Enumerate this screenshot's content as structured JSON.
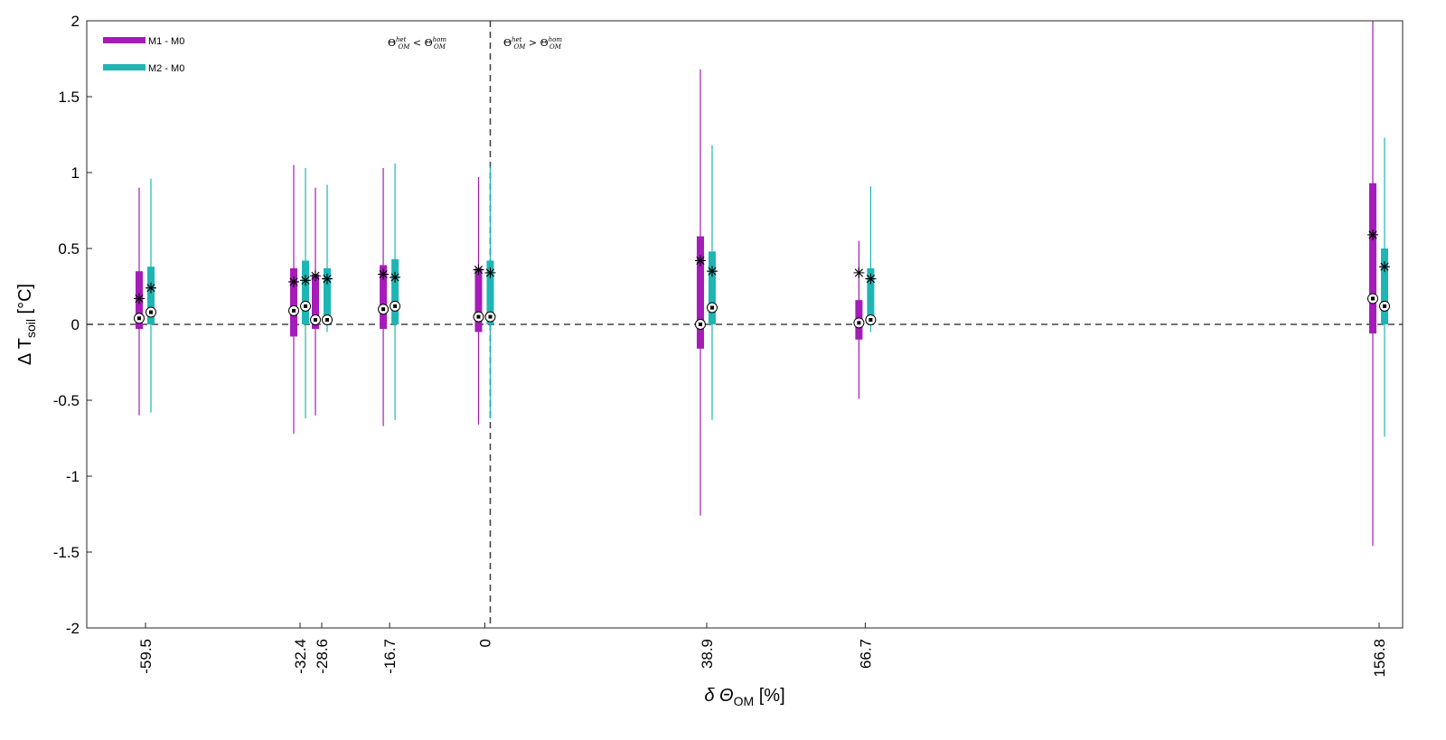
{
  "chart_data": {
    "type": "box",
    "xlabel": {
      "prefix": "δ Θ",
      "sub": "OM",
      "suffix": " [%]"
    },
    "ylabel": {
      "prefix": "Δ T",
      "sub": "soil",
      "suffix": " [°C]"
    },
    "ylim": [
      -2,
      2
    ],
    "yticks": [
      -2,
      -1.5,
      -1,
      -0.5,
      0,
      0.5,
      1,
      1.5,
      2
    ],
    "ytick_labels": [
      "-2",
      "-1.5",
      "-1",
      "-0.5",
      "0",
      "0.5",
      "1",
      "1.5",
      "2"
    ],
    "categories": [
      "-59.5",
      "-32.4",
      "-28.6",
      "-16.7",
      "0",
      "38.9",
      "66.7",
      "156.8"
    ],
    "zero_line": "dashed",
    "divider_at_category": "0",
    "annotations": [
      {
        "text": "Θ",
        "sub": "OM",
        "sup": "het",
        "op": " < ",
        "text2": "Θ",
        "sub2": "OM",
        "sup2": "hom",
        "side": "left"
      },
      {
        "text": "Θ",
        "sub": "OM",
        "sup": "het",
        "op": " > ",
        "text2": "Θ",
        "sub2": "OM",
        "sup2": "hom",
        "side": "right"
      }
    ],
    "legend_position": "top-left",
    "series": [
      {
        "name": "M1 - M0",
        "color": "#A51CB9",
        "boxes": [
          {
            "whisker_low": -0.6,
            "q1": -0.03,
            "median": 0.04,
            "q3": 0.35,
            "whisker_high": 0.9,
            "mean": 0.17
          },
          {
            "whisker_low": -0.72,
            "q1": -0.08,
            "median": 0.09,
            "q3": 0.37,
            "whisker_high": 1.05,
            "mean": 0.28
          },
          {
            "whisker_low": -0.6,
            "q1": -0.03,
            "median": 0.03,
            "q3": 0.33,
            "whisker_high": 0.9,
            "mean": 0.32
          },
          {
            "whisker_low": -0.67,
            "q1": -0.03,
            "median": 0.1,
            "q3": 0.39,
            "whisker_high": 1.03,
            "mean": 0.33
          },
          {
            "whisker_low": -0.66,
            "q1": -0.05,
            "median": 0.05,
            "q3": 0.37,
            "whisker_high": 0.97,
            "mean": 0.36
          },
          {
            "whisker_low": -1.26,
            "q1": -0.16,
            "median": 0.0,
            "q3": 0.58,
            "whisker_high": 1.68,
            "mean": 0.42
          },
          {
            "whisker_low": -0.49,
            "q1": -0.1,
            "median": 0.01,
            "q3": 0.16,
            "whisker_high": 0.55,
            "mean": 0.34
          },
          {
            "whisker_low": -1.46,
            "q1": -0.06,
            "median": 0.17,
            "q3": 0.93,
            "whisker_high": 2.0,
            "mean": 0.59
          }
        ]
      },
      {
        "name": "M2 - M0",
        "color": "#1FB5B5",
        "boxes": [
          {
            "whisker_low": -0.58,
            "q1": 0.0,
            "median": 0.08,
            "q3": 0.38,
            "whisker_high": 0.96,
            "mean": 0.24
          },
          {
            "whisker_low": -0.62,
            "q1": 0.0,
            "median": 0.12,
            "q3": 0.42,
            "whisker_high": 1.03,
            "mean": 0.29
          },
          {
            "whisker_low": -0.05,
            "q1": 0.0,
            "median": 0.03,
            "q3": 0.37,
            "whisker_high": 0.92,
            "mean": 0.3
          },
          {
            "whisker_low": -0.63,
            "q1": 0.0,
            "median": 0.12,
            "q3": 0.43,
            "whisker_high": 1.06,
            "mean": 0.31
          },
          {
            "whisker_low": -0.62,
            "q1": 0.0,
            "median": 0.05,
            "q3": 0.42,
            "whisker_high": 1.04,
            "mean": 0.34
          },
          {
            "whisker_low": -0.63,
            "q1": 0.0,
            "median": 0.11,
            "q3": 0.48,
            "whisker_high": 1.18,
            "mean": 0.35
          },
          {
            "whisker_low": -0.05,
            "q1": 0.0,
            "median": 0.03,
            "q3": 0.37,
            "whisker_high": 0.91,
            "mean": 0.3
          },
          {
            "whisker_low": -0.74,
            "q1": 0.0,
            "median": 0.12,
            "q3": 0.5,
            "whisker_high": 1.23,
            "mean": 0.38
          }
        ]
      }
    ]
  }
}
